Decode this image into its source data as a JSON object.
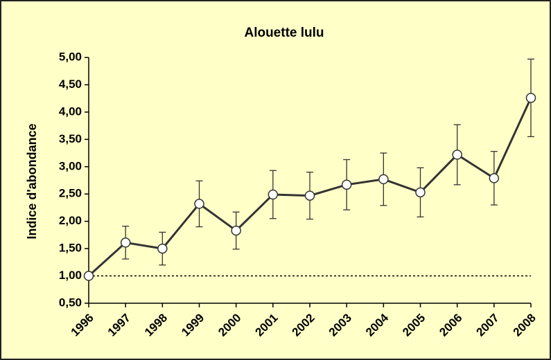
{
  "chart_data": {
    "type": "line",
    "title": "Alouette lulu",
    "y_label": "Indice d'abondance",
    "categories": [
      "1996",
      "1997",
      "1998",
      "1999",
      "2000",
      "2001",
      "2002",
      "2003",
      "2004",
      "2005",
      "2006",
      "2007",
      "2008"
    ],
    "series": [
      {
        "name": "Alouette lulu",
        "color": "#333333",
        "values": [
          1.0,
          1.61,
          1.5,
          2.32,
          1.83,
          2.49,
          2.47,
          2.67,
          2.77,
          2.53,
          3.22,
          2.79,
          4.26
        ],
        "errors": [
          0,
          0.3,
          0.3,
          0.42,
          0.34,
          0.44,
          0.43,
          0.46,
          0.48,
          0.45,
          0.55,
          0.49,
          0.71
        ]
      }
    ],
    "reference_line": 1,
    "ylim": [
      0.5,
      5
    ],
    "yticks": [
      {
        "value": 0.5,
        "label": "0,50"
      },
      {
        "value": 1,
        "label": "1,00"
      },
      {
        "value": 1.5,
        "label": "1,50"
      },
      {
        "value": 2,
        "label": "2,00"
      },
      {
        "value": 2.5,
        "label": "2,50"
      },
      {
        "value": 3,
        "label": "3,00"
      },
      {
        "value": 3.5,
        "label": "3,50"
      },
      {
        "value": 4,
        "label": "4,00"
      },
      {
        "value": 4.5,
        "label": "4,50"
      },
      {
        "value": 5,
        "label": "5,00"
      }
    ]
  }
}
